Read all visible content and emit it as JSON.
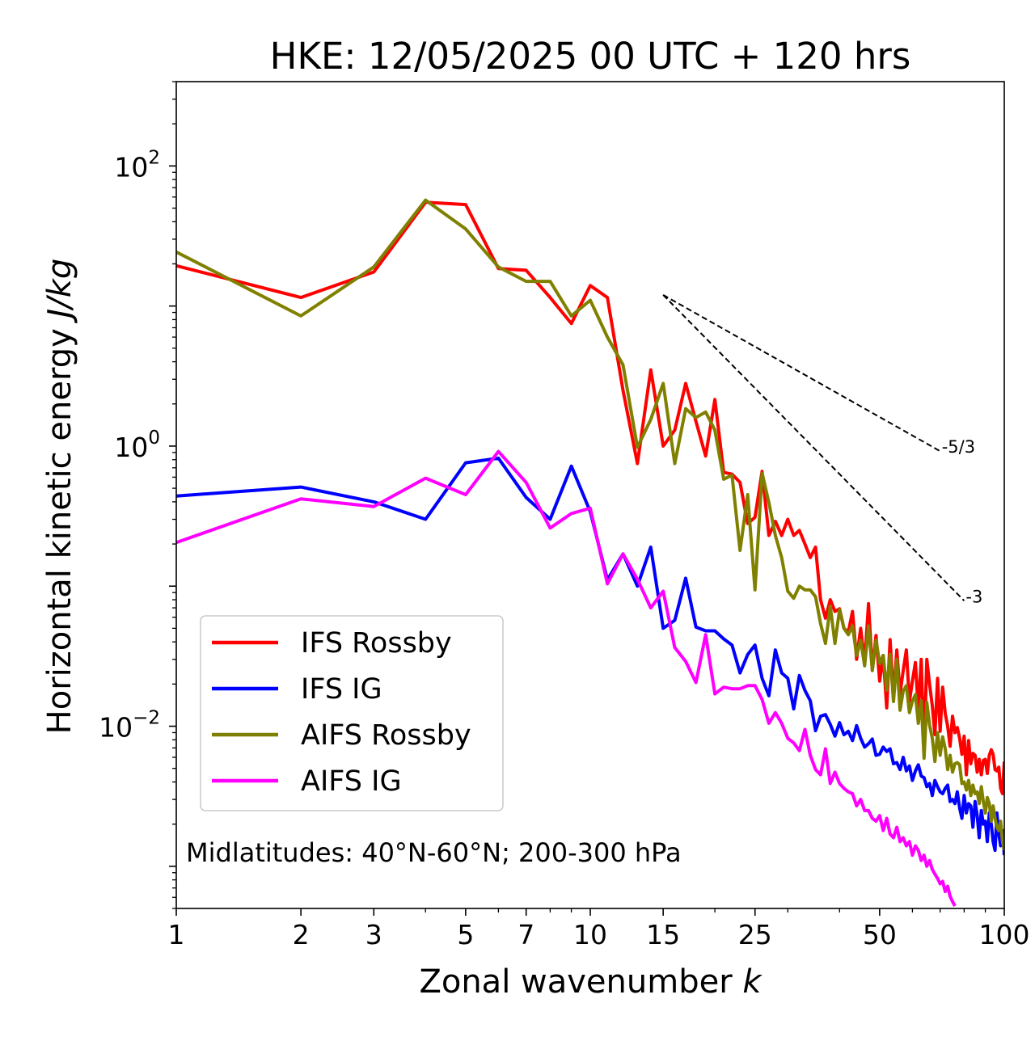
{
  "chart_data": {
    "type": "line",
    "title": "HKE: 12/05/2025 00 UTC + 120 hrs",
    "xlabel": "Zonal wavenumber",
    "xlabel_symbol": "k",
    "ylabel": "Horizontal kinetic energy",
    "ylabel_units": "J/kg",
    "x_scale": "log",
    "y_scale": "log",
    "xlim": [
      1,
      100
    ],
    "ylim": [
      0.0005,
      400
    ],
    "x_ticks": [
      1,
      2,
      3,
      5,
      7,
      10,
      15,
      25,
      50,
      100
    ],
    "x_tick_labels": [
      "1",
      "2",
      "3",
      "5",
      "7",
      "10",
      "15",
      "25",
      "50",
      "100"
    ],
    "y_ticks": [
      0.01,
      1,
      100
    ],
    "y_tick_labels": [
      {
        "base": "10",
        "exp": "−2"
      },
      {
        "base": "10",
        "exp": "0"
      },
      {
        "base": "10",
        "exp": "2"
      }
    ],
    "grid": false,
    "legend_position": "lower-left",
    "annotation": "Midlatitudes: 40°N-60°N; 200-300 hPa",
    "reference_lines": [
      {
        "label": "-5/3",
        "slope": -1.6667,
        "x": [
          15,
          70
        ],
        "y": [
          12,
          0.92
        ]
      },
      {
        "label": "-3",
        "slope": -3,
        "x": [
          15,
          80
        ],
        "y": [
          12,
          0.0787
        ]
      }
    ],
    "series": [
      {
        "name": "IFS Rossby",
        "color": "#ff0000",
        "y": [
          19.4,
          11.5,
          17.5,
          55,
          53,
          18.5,
          18,
          11.5,
          7.5,
          14,
          11.5,
          2.5,
          0.75,
          3.5,
          1,
          1.3,
          2.8,
          1.5,
          0.85,
          2.15,
          0.65,
          0.63,
          0.55,
          0.28,
          0.31,
          0.66,
          0.23,
          0.29,
          0.23,
          0.3,
          0.23,
          0.25,
          0.2,
          0.16,
          0.19,
          0.08,
          0.059,
          0.08,
          0.066,
          0.069,
          0.05,
          0.047,
          0.066,
          0.03,
          0.05,
          0.028,
          0.075,
          0.025,
          0.0445,
          0.021,
          0.032,
          0.0135,
          0.0415,
          0.016,
          0.035,
          0.017,
          0.025,
          0.035,
          0.015,
          0.021,
          0.0285,
          0.013,
          0.03,
          0.0066,
          0.03,
          0.02,
          0.014,
          0.0087,
          0.022,
          0.0092,
          0.019,
          0.0123,
          0.01,
          0.0072,
          0.0118,
          0.009,
          0.0098,
          0.0082,
          0.0063,
          0.0085,
          0.0045,
          0.0079,
          0.0054,
          0.0064,
          0.0062,
          0.0047,
          0.0058,
          0.0045,
          0.0057,
          0.0058,
          0.0046,
          0.0062,
          0.0068,
          0.0063,
          0.0049,
          0.0048,
          0.0051,
          0.0036,
          0.0033,
          0.0056
        ]
      },
      {
        "name": "IFS IG",
        "color": "#0000ff",
        "y": [
          0.44,
          0.51,
          0.4,
          0.3,
          0.76,
          0.82,
          0.43,
          0.3,
          0.72,
          0.34,
          0.111,
          0.17,
          0.1,
          0.19,
          0.05,
          0.057,
          0.114,
          0.051,
          0.048,
          0.048,
          0.042,
          0.038,
          0.024,
          0.0325,
          0.038,
          0.022,
          0.0165,
          0.035,
          0.024,
          0.022,
          0.0133,
          0.023,
          0.018,
          0.0152,
          0.0093,
          0.0118,
          0.0121,
          0.0103,
          0.0085,
          0.0106,
          0.0087,
          0.0092,
          0.0079,
          0.0101,
          0.0082,
          0.0071,
          0.0075,
          0.0081,
          0.0062,
          0.0063,
          0.0071,
          0.0066,
          0.0069,
          0.0054,
          0.0055,
          0.0049,
          0.006,
          0.0048,
          0.0052,
          0.0041,
          0.0048,
          0.0053,
          0.0044,
          0.0043,
          0.0037,
          0.0039,
          0.0032,
          0.0041,
          0.0037,
          0.0034,
          0.0033,
          0.0036,
          0.0038,
          0.0029,
          0.003,
          0.0028,
          0.0034,
          0.0026,
          0.0022,
          0.0032,
          0.0024,
          0.0028,
          0.0027,
          0.0019,
          0.0029,
          0.0023,
          0.0016,
          0.0025,
          0.002,
          0.0021,
          0.0015,
          0.0024,
          0.002,
          0.0015,
          0.0013,
          0.0024,
          0.0017,
          0.0014,
          0.0018,
          0.0012
        ]
      },
      {
        "name": "AIFS Rossby",
        "color": "#808000",
        "y": [
          24.3,
          8.5,
          19,
          57,
          35.5,
          19,
          15,
          15,
          8.5,
          11,
          6,
          3.8,
          0.98,
          1.55,
          2.8,
          0.75,
          1.85,
          1.6,
          1.75,
          1.3,
          0.58,
          0.62,
          0.18,
          0.45,
          0.094,
          0.64,
          0.395,
          0.23,
          0.16,
          0.092,
          0.082,
          0.1,
          0.094,
          0.094,
          0.084,
          0.054,
          0.039,
          0.072,
          0.039,
          0.068,
          0.05,
          0.045,
          0.052,
          0.032,
          0.041,
          0.027,
          0.052,
          0.025,
          0.0412,
          0.0282,
          0.032,
          0.0181,
          0.0326,
          0.015,
          0.03,
          0.013,
          0.0178,
          0.0195,
          0.0125,
          0.0151,
          0.0168,
          0.0105,
          0.0152,
          0.0059,
          0.0148,
          0.0102,
          0.0082,
          0.0056,
          0.009,
          0.0062,
          0.0084,
          0.0069,
          0.0049,
          0.0062,
          0.0047,
          0.0054,
          0.0055,
          0.0053,
          0.0039,
          0.004,
          0.0035,
          0.0041,
          0.0032,
          0.0038,
          0.0033,
          0.0034,
          0.0028,
          0.0037,
          0.0029,
          0.0024,
          0.0031,
          0.0028,
          0.0021,
          0.0027,
          0.0022,
          0.0019,
          0.0018,
          0.0021,
          0.0015,
          0.0013
        ]
      },
      {
        "name": "AIFS IG",
        "color": "#ff00ff",
        "y": [
          0.205,
          0.42,
          0.37,
          0.59,
          0.45,
          0.915,
          0.55,
          0.26,
          0.33,
          0.36,
          0.104,
          0.17,
          0.112,
          0.07,
          0.092,
          0.0365,
          0.029,
          0.0205,
          0.045,
          0.017,
          0.019,
          0.0185,
          0.0185,
          0.0195,
          0.0195,
          0.0155,
          0.0105,
          0.0125,
          0.0105,
          0.0082,
          0.0076,
          0.0067,
          0.0095,
          0.0062,
          0.0049,
          0.0045,
          0.0069,
          0.0039,
          0.0047,
          0.0039,
          0.0036,
          0.0034,
          0.0033,
          0.0027,
          0.003,
          0.0025,
          0.0025,
          0.0022,
          0.0021,
          0.0023,
          0.0018,
          0.0022,
          0.0017,
          0.0016,
          0.0019,
          0.0015,
          0.0016,
          0.0014,
          0.0015,
          0.0012,
          0.0014,
          0.0013,
          0.0011,
          0.0012,
          0.001,
          0.0011,
          0.00095,
          0.00088,
          0.00082,
          0.00075,
          0.00078,
          0.00066,
          0.00072,
          0.00061,
          0.00056,
          0.00052
        ]
      }
    ]
  }
}
